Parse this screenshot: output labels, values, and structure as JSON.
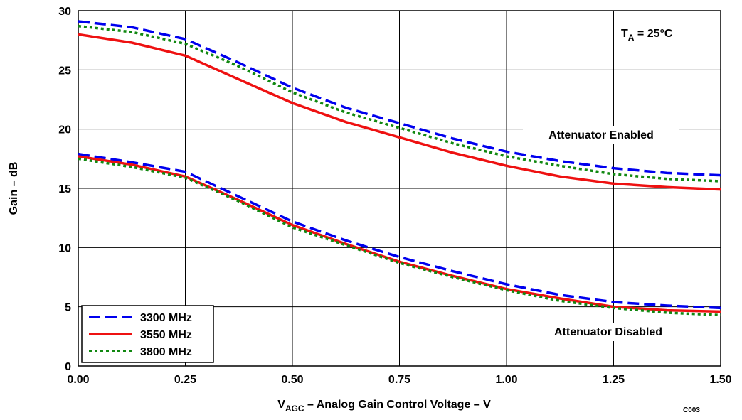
{
  "chart_data": {
    "type": "line",
    "xlabel": {
      "main": "V",
      "sub": "AGC",
      "rest": " – Analog Gain Control Voltage – V"
    },
    "ylabel": "Gain – dB",
    "condition": {
      "main": "T",
      "sub": "A",
      "rest": " = 25°C"
    },
    "annotations": [
      "Attenuator Enabled",
      "Attenuator Disabled"
    ],
    "figure_id": "C003",
    "x": [
      0,
      0.125,
      0.25,
      0.375,
      0.5,
      0.625,
      0.75,
      0.875,
      1.0,
      1.125,
      1.25,
      1.375,
      1.5
    ],
    "xlim": [
      0,
      1.5
    ],
    "xticks": [
      {
        "value": 0,
        "label": "0.00"
      },
      {
        "value": 0.25,
        "label": "0.25"
      },
      {
        "value": 0.5,
        "label": "0.50"
      },
      {
        "value": 0.75,
        "label": "0.75"
      },
      {
        "value": 1,
        "label": "1.00"
      },
      {
        "value": 1.25,
        "label": "1.25"
      },
      {
        "value": 1.5,
        "label": "1.50"
      }
    ],
    "ylim": [
      0,
      30
    ],
    "yticks": [
      0,
      5,
      10,
      15,
      20,
      25,
      30
    ],
    "grid": true,
    "legend": "lower left",
    "series": [
      {
        "name": "3300 MHz",
        "color": "#0000ee",
        "dash": "dashed",
        "curves": [
          [
            29.1,
            28.6,
            27.6,
            25.6,
            23.5,
            21.8,
            20.5,
            19.2,
            18.1,
            17.3,
            16.7,
            16.3,
            16.1
          ],
          [
            17.9,
            17.2,
            16.4,
            14.3,
            12.2,
            10.6,
            9.2,
            8.0,
            6.9,
            6.0,
            5.4,
            5.1,
            4.9
          ]
        ]
      },
      {
        "name": "3550 MHz",
        "color": "#ee1111",
        "dash": "solid",
        "curves": [
          [
            28.0,
            27.3,
            26.2,
            24.2,
            22.2,
            20.6,
            19.3,
            18.0,
            16.9,
            16.0,
            15.4,
            15.1,
            14.9
          ],
          [
            17.7,
            17.0,
            16.0,
            14.0,
            11.9,
            10.3,
            8.8,
            7.6,
            6.5,
            5.7,
            5.0,
            4.7,
            4.6
          ]
        ]
      },
      {
        "name": "3800 MHz",
        "color": "#118811",
        "dash": "dotted",
        "curves": [
          [
            28.7,
            28.2,
            27.2,
            25.3,
            23.1,
            21.4,
            20.1,
            18.8,
            17.7,
            16.9,
            16.2,
            15.8,
            15.6
          ],
          [
            17.5,
            16.8,
            15.9,
            13.9,
            11.7,
            10.2,
            8.7,
            7.5,
            6.4,
            5.5,
            4.9,
            4.5,
            4.3
          ]
        ]
      }
    ]
  }
}
